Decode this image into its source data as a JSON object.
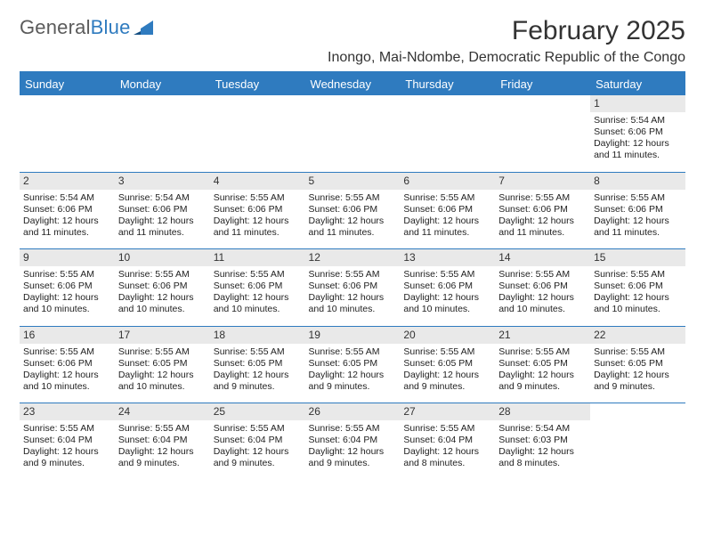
{
  "logo": {
    "word1": "General",
    "word2": "Blue"
  },
  "title": "February 2025",
  "location": "Inongo, Mai-Ndombe, Democratic Republic of the Congo",
  "colors": {
    "accent": "#2f7bbf",
    "header_text": "#ffffff",
    "daynum_bg": "#e9e9e9",
    "text": "#222222",
    "logo_gray": "#5b5b5b"
  },
  "day_headers": [
    "Sunday",
    "Monday",
    "Tuesday",
    "Wednesday",
    "Thursday",
    "Friday",
    "Saturday"
  ],
  "weeks": [
    [
      {
        "n": "",
        "empty": true
      },
      {
        "n": "",
        "empty": true
      },
      {
        "n": "",
        "empty": true
      },
      {
        "n": "",
        "empty": true
      },
      {
        "n": "",
        "empty": true
      },
      {
        "n": "",
        "empty": true
      },
      {
        "n": "1",
        "sunrise": "Sunrise: 5:54 AM",
        "sunset": "Sunset: 6:06 PM",
        "daylight": "Daylight: 12 hours and 11 minutes."
      }
    ],
    [
      {
        "n": "2",
        "sunrise": "Sunrise: 5:54 AM",
        "sunset": "Sunset: 6:06 PM",
        "daylight": "Daylight: 12 hours and 11 minutes."
      },
      {
        "n": "3",
        "sunrise": "Sunrise: 5:54 AM",
        "sunset": "Sunset: 6:06 PM",
        "daylight": "Daylight: 12 hours and 11 minutes."
      },
      {
        "n": "4",
        "sunrise": "Sunrise: 5:55 AM",
        "sunset": "Sunset: 6:06 PM",
        "daylight": "Daylight: 12 hours and 11 minutes."
      },
      {
        "n": "5",
        "sunrise": "Sunrise: 5:55 AM",
        "sunset": "Sunset: 6:06 PM",
        "daylight": "Daylight: 12 hours and 11 minutes."
      },
      {
        "n": "6",
        "sunrise": "Sunrise: 5:55 AM",
        "sunset": "Sunset: 6:06 PM",
        "daylight": "Daylight: 12 hours and 11 minutes."
      },
      {
        "n": "7",
        "sunrise": "Sunrise: 5:55 AM",
        "sunset": "Sunset: 6:06 PM",
        "daylight": "Daylight: 12 hours and 11 minutes."
      },
      {
        "n": "8",
        "sunrise": "Sunrise: 5:55 AM",
        "sunset": "Sunset: 6:06 PM",
        "daylight": "Daylight: 12 hours and 11 minutes."
      }
    ],
    [
      {
        "n": "9",
        "sunrise": "Sunrise: 5:55 AM",
        "sunset": "Sunset: 6:06 PM",
        "daylight": "Daylight: 12 hours and 10 minutes."
      },
      {
        "n": "10",
        "sunrise": "Sunrise: 5:55 AM",
        "sunset": "Sunset: 6:06 PM",
        "daylight": "Daylight: 12 hours and 10 minutes."
      },
      {
        "n": "11",
        "sunrise": "Sunrise: 5:55 AM",
        "sunset": "Sunset: 6:06 PM",
        "daylight": "Daylight: 12 hours and 10 minutes."
      },
      {
        "n": "12",
        "sunrise": "Sunrise: 5:55 AM",
        "sunset": "Sunset: 6:06 PM",
        "daylight": "Daylight: 12 hours and 10 minutes."
      },
      {
        "n": "13",
        "sunrise": "Sunrise: 5:55 AM",
        "sunset": "Sunset: 6:06 PM",
        "daylight": "Daylight: 12 hours and 10 minutes."
      },
      {
        "n": "14",
        "sunrise": "Sunrise: 5:55 AM",
        "sunset": "Sunset: 6:06 PM",
        "daylight": "Daylight: 12 hours and 10 minutes."
      },
      {
        "n": "15",
        "sunrise": "Sunrise: 5:55 AM",
        "sunset": "Sunset: 6:06 PM",
        "daylight": "Daylight: 12 hours and 10 minutes."
      }
    ],
    [
      {
        "n": "16",
        "sunrise": "Sunrise: 5:55 AM",
        "sunset": "Sunset: 6:06 PM",
        "daylight": "Daylight: 12 hours and 10 minutes."
      },
      {
        "n": "17",
        "sunrise": "Sunrise: 5:55 AM",
        "sunset": "Sunset: 6:05 PM",
        "daylight": "Daylight: 12 hours and 10 minutes."
      },
      {
        "n": "18",
        "sunrise": "Sunrise: 5:55 AM",
        "sunset": "Sunset: 6:05 PM",
        "daylight": "Daylight: 12 hours and 9 minutes."
      },
      {
        "n": "19",
        "sunrise": "Sunrise: 5:55 AM",
        "sunset": "Sunset: 6:05 PM",
        "daylight": "Daylight: 12 hours and 9 minutes."
      },
      {
        "n": "20",
        "sunrise": "Sunrise: 5:55 AM",
        "sunset": "Sunset: 6:05 PM",
        "daylight": "Daylight: 12 hours and 9 minutes."
      },
      {
        "n": "21",
        "sunrise": "Sunrise: 5:55 AM",
        "sunset": "Sunset: 6:05 PM",
        "daylight": "Daylight: 12 hours and 9 minutes."
      },
      {
        "n": "22",
        "sunrise": "Sunrise: 5:55 AM",
        "sunset": "Sunset: 6:05 PM",
        "daylight": "Daylight: 12 hours and 9 minutes."
      }
    ],
    [
      {
        "n": "23",
        "sunrise": "Sunrise: 5:55 AM",
        "sunset": "Sunset: 6:04 PM",
        "daylight": "Daylight: 12 hours and 9 minutes."
      },
      {
        "n": "24",
        "sunrise": "Sunrise: 5:55 AM",
        "sunset": "Sunset: 6:04 PM",
        "daylight": "Daylight: 12 hours and 9 minutes."
      },
      {
        "n": "25",
        "sunrise": "Sunrise: 5:55 AM",
        "sunset": "Sunset: 6:04 PM",
        "daylight": "Daylight: 12 hours and 9 minutes."
      },
      {
        "n": "26",
        "sunrise": "Sunrise: 5:55 AM",
        "sunset": "Sunset: 6:04 PM",
        "daylight": "Daylight: 12 hours and 9 minutes."
      },
      {
        "n": "27",
        "sunrise": "Sunrise: 5:55 AM",
        "sunset": "Sunset: 6:04 PM",
        "daylight": "Daylight: 12 hours and 8 minutes."
      },
      {
        "n": "28",
        "sunrise": "Sunrise: 5:54 AM",
        "sunset": "Sunset: 6:03 PM",
        "daylight": "Daylight: 12 hours and 8 minutes."
      },
      {
        "n": "",
        "empty": true
      }
    ]
  ]
}
